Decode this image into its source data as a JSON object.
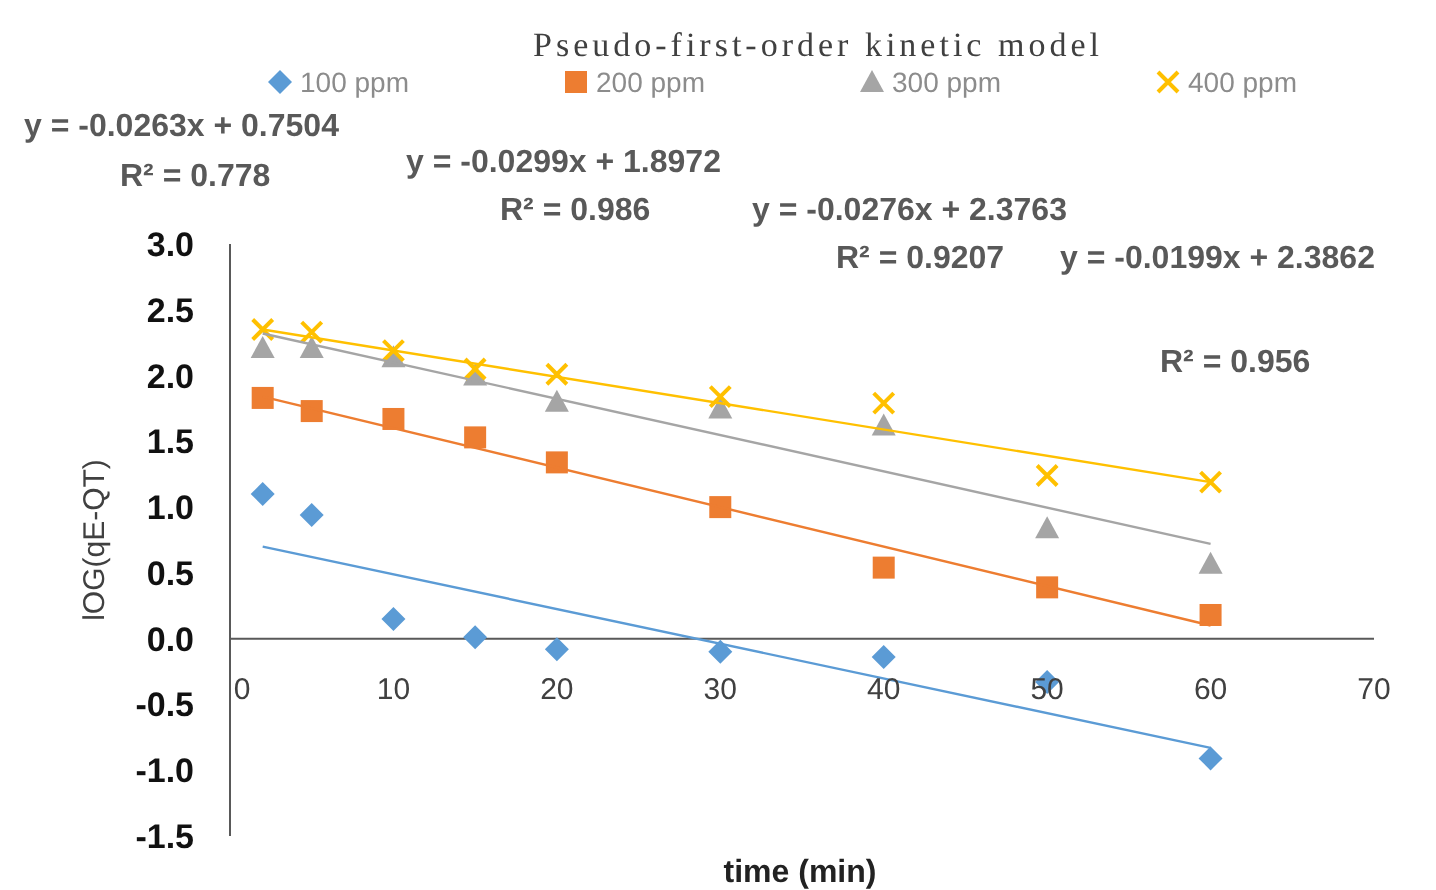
{
  "chart_data": {
    "type": "scatter",
    "title": "Pseudo-first-order kinetic model",
    "xlabel": "time (min)",
    "ylabel": "lOG(qE-QT)",
    "x": [
      2,
      5,
      10,
      15,
      20,
      30,
      40,
      50,
      60
    ],
    "xlim": [
      0,
      70
    ],
    "xticks": [
      0,
      10,
      20,
      30,
      40,
      50,
      60,
      70
    ],
    "ylim": [
      -1.5,
      3.0
    ],
    "yticks": [
      {
        "value": -1.5,
        "label": "-1.5"
      },
      {
        "value": -1,
        "label": "-1.0"
      },
      {
        "value": -0.5,
        "label": "-0.5"
      },
      {
        "value": 0,
        "label": "0.0"
      },
      {
        "value": 0.5,
        "label": "0.5"
      },
      {
        "value": 1,
        "label": "1.0"
      },
      {
        "value": 1.5,
        "label": "1.5"
      },
      {
        "value": 2,
        "label": "2.0"
      },
      {
        "value": 2.5,
        "label": "2.5"
      },
      {
        "value": 3,
        "label": "3.0"
      }
    ],
    "grid": false,
    "legend": "top",
    "series": [
      {
        "name": "100 ppm",
        "color": "#5b9bd5",
        "marker": "diamond",
        "values": [
          1.1,
          0.94,
          0.15,
          0.01,
          -0.08,
          -0.1,
          -0.14,
          -0.33,
          -0.91
        ]
      },
      {
        "name": "200 ppm",
        "color": "#ed7d31",
        "marker": "square",
        "values": [
          1.83,
          1.73,
          1.67,
          1.53,
          1.34,
          1.0,
          0.54,
          0.39,
          0.18
        ]
      },
      {
        "name": "300 ppm",
        "color": "#a5a5a5",
        "marker": "triangle",
        "values": [
          2.21,
          2.21,
          2.14,
          2.0,
          1.8,
          1.75,
          1.62,
          0.84,
          0.57
        ]
      },
      {
        "name": "400 ppm",
        "color": "#ffc000",
        "marker": "cross",
        "values": [
          2.35,
          2.33,
          2.19,
          2.05,
          2.01,
          1.84,
          1.79,
          1.24,
          1.19
        ]
      },
      {
        "type": "line",
        "color": "#5b9bd5",
        "values": [
          0.7,
          null,
          null,
          null,
          null,
          null,
          null,
          null,
          -0.83
        ]
      },
      {
        "type": "line",
        "color": "#ed7d31",
        "values": [
          1.84,
          null,
          null,
          null,
          null,
          null,
          null,
          null,
          0.1
        ]
      },
      {
        "type": "line",
        "color": "#a5a5a5",
        "values": [
          2.32,
          null,
          null,
          null,
          null,
          null,
          null,
          null,
          0.72
        ]
      },
      {
        "type": "line",
        "color": "#ffc000",
        "values": [
          2.35,
          null,
          null,
          null,
          null,
          null,
          null,
          null,
          1.19
        ]
      }
    ],
    "annotations": [
      "y = -0.0263x + 0.7504",
      "R² = 0.778",
      "y = -0.0299x + 1.8972",
      "R² = 0.986",
      "y = -0.0276x + 2.3763",
      "R² = 0.9207",
      "y = -0.0199x + 2.3862",
      "R² = 0.956"
    ]
  }
}
